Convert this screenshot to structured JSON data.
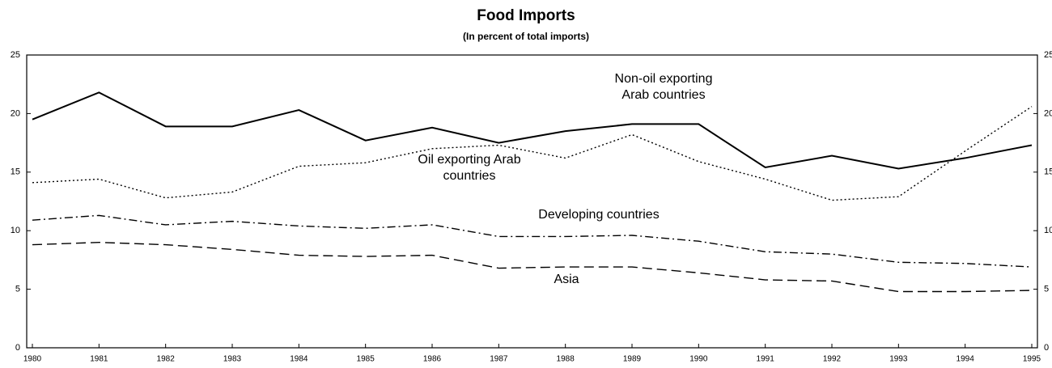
{
  "chart_data": {
    "type": "line",
    "title": "Food Imports",
    "subtitle": "(In percent of total imports)",
    "categories": [
      "1980",
      "1981",
      "1982",
      "1983",
      "1984",
      "1985",
      "1986",
      "1987",
      "1988",
      "1989",
      "1990",
      "1991",
      "1992",
      "1993",
      "1994",
      "1995"
    ],
    "series": [
      {
        "name": "Non-oil exporting Arab countries",
        "color": "#000000",
        "style": "solid",
        "values": [
          19.5,
          21.8,
          18.9,
          18.9,
          20.3,
          17.7,
          18.8,
          17.5,
          18.5,
          19.1,
          19.1,
          15.4,
          16.4,
          15.3,
          16.2,
          17.3
        ]
      },
      {
        "name": "Oil exporting Arab countries",
        "color": "#000000",
        "style": "dotted",
        "values": [
          14.1,
          14.4,
          12.8,
          13.3,
          15.5,
          15.8,
          17.0,
          17.3,
          16.2,
          18.2,
          15.9,
          14.4,
          12.6,
          12.9,
          16.8,
          20.6
        ]
      },
      {
        "name": "Developing countries",
        "color": "#000000",
        "style": "dashdot",
        "values": [
          10.9,
          11.3,
          10.5,
          10.8,
          10.4,
          10.2,
          10.5,
          9.5,
          9.5,
          9.6,
          9.1,
          8.2,
          8.0,
          7.3,
          7.2,
          6.9
        ]
      },
      {
        "name": "Asia",
        "color": "#000000",
        "style": "dashed",
        "values": [
          8.8,
          9.0,
          8.8,
          8.4,
          7.9,
          7.8,
          7.9,
          6.8,
          6.9,
          6.9,
          6.4,
          5.8,
          5.7,
          4.8,
          4.8,
          4.9
        ]
      }
    ],
    "ylim": [
      0,
      25
    ],
    "yticks": [
      0,
      5,
      10,
      15,
      20,
      25
    ],
    "y2lim": [
      0,
      25
    ],
    "y2ticks": [
      0,
      5,
      10,
      15,
      20,
      25
    ],
    "grid": false
  }
}
